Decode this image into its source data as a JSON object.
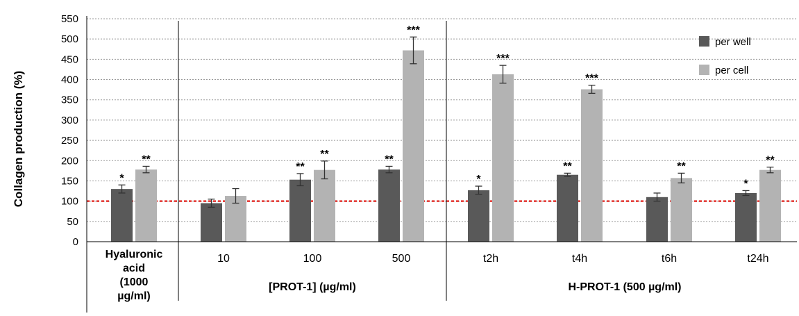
{
  "chart_data": {
    "type": "bar",
    "ylabel": "Collagen production (%)",
    "ylim": [
      0,
      550
    ],
    "yticks": [
      0,
      50,
      100,
      150,
      200,
      250,
      300,
      350,
      400,
      450,
      500,
      550
    ],
    "grid": "horizontal dotted",
    "legend_position": "top-right",
    "categories": [
      "Hyaluronic acid (1000 µg/ml)",
      "10",
      "100",
      "500",
      "t2h",
      "t4h",
      "t6h",
      "t24h"
    ],
    "series": [
      {
        "name": "per well",
        "color": "#595959",
        "values": [
          130,
          95,
          153,
          178,
          127,
          165,
          110,
          120
        ],
        "errors": [
          10,
          10,
          15,
          8,
          10,
          4,
          10,
          6
        ],
        "significance": [
          "*",
          "",
          "**",
          "**",
          "*",
          "**",
          "",
          "*"
        ]
      },
      {
        "name": "per cell",
        "color": "#b3b3b3",
        "values": [
          178,
          113,
          177,
          472,
          413,
          376,
          157,
          177
        ],
        "errors": [
          8,
          18,
          22,
          33,
          22,
          10,
          12,
          7
        ],
        "significance": [
          "**",
          "",
          "**",
          "***",
          "***",
          "***",
          "**",
          "**"
        ]
      }
    ],
    "reference_line": {
      "y": 100,
      "color": "#e3342f"
    },
    "group_labels": {
      "hyaluronic": [
        "Hyaluronic",
        "acid",
        "(1000",
        "µg/ml)"
      ],
      "prot1": "[PROT-1] (µg/ml)",
      "hprot1": "H-PROT-1 (500 µg/ml)"
    }
  }
}
